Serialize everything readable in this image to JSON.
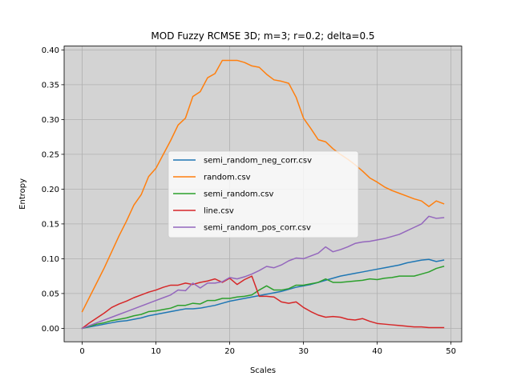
{
  "chart_data": {
    "type": "line",
    "title": "MOD Fuzzy RCMSE 3D; m=3; r=0.2; delta=0.5",
    "xlabel": "Scales",
    "ylabel": "Entropy",
    "xlim": [
      -2.45,
      51.45
    ],
    "ylim": [
      -0.0193,
      0.4055
    ],
    "xticks": [
      0,
      10,
      20,
      30,
      40,
      50
    ],
    "yticks": [
      0.0,
      0.05,
      0.1,
      0.15,
      0.2,
      0.25,
      0.3,
      0.35,
      0.4
    ],
    "ytick_labels": [
      "0.00",
      "0.05",
      "0.10",
      "0.15",
      "0.20",
      "0.25",
      "0.30",
      "0.35",
      "0.40"
    ],
    "grid": true,
    "background": "#d3d3d3",
    "legend_position": "center",
    "x": [
      0,
      1,
      2,
      3,
      4,
      5,
      6,
      7,
      8,
      9,
      10,
      11,
      12,
      13,
      14,
      15,
      16,
      17,
      18,
      19,
      20,
      21,
      22,
      23,
      24,
      25,
      26,
      27,
      28,
      29,
      30,
      31,
      32,
      33,
      34,
      35,
      36,
      37,
      38,
      39,
      40,
      41,
      42,
      43,
      44,
      45,
      46,
      47,
      48,
      49
    ],
    "series": [
      {
        "name": "semi_random_neg_corr.csv",
        "color": "#1f77b4",
        "values": [
          0.0,
          0.002,
          0.004,
          0.006,
          0.008,
          0.01,
          0.011,
          0.013,
          0.015,
          0.018,
          0.02,
          0.022,
          0.024,
          0.026,
          0.028,
          0.028,
          0.029,
          0.031,
          0.033,
          0.036,
          0.039,
          0.041,
          0.043,
          0.045,
          0.047,
          0.049,
          0.051,
          0.053,
          0.056,
          0.059,
          0.061,
          0.063,
          0.066,
          0.069,
          0.072,
          0.075,
          0.077,
          0.079,
          0.081,
          0.083,
          0.085,
          0.087,
          0.089,
          0.091,
          0.094,
          0.096,
          0.098,
          0.099,
          0.096,
          0.098
        ]
      },
      {
        "name": "random.csv",
        "color": "#ff7f0e",
        "values": [
          0.024,
          0.045,
          0.066,
          0.087,
          0.11,
          0.133,
          0.154,
          0.177,
          0.192,
          0.218,
          0.23,
          0.25,
          0.27,
          0.292,
          0.302,
          0.333,
          0.34,
          0.36,
          0.366,
          0.385,
          0.385,
          0.385,
          0.382,
          0.377,
          0.375,
          0.365,
          0.357,
          0.355,
          0.352,
          0.332,
          0.302,
          0.287,
          0.271,
          0.268,
          0.258,
          0.25,
          0.243,
          0.235,
          0.226,
          0.216,
          0.21,
          0.203,
          0.198,
          0.194,
          0.19,
          0.186,
          0.183,
          0.175,
          0.183,
          0.179
        ]
      },
      {
        "name": "semi_random.csv",
        "color": "#2ca02c",
        "values": [
          0.0,
          0.003,
          0.006,
          0.008,
          0.011,
          0.013,
          0.015,
          0.018,
          0.02,
          0.024,
          0.025,
          0.027,
          0.029,
          0.033,
          0.033,
          0.036,
          0.035,
          0.04,
          0.04,
          0.043,
          0.043,
          0.045,
          0.046,
          0.048,
          0.055,
          0.061,
          0.055,
          0.055,
          0.057,
          0.062,
          0.062,
          0.064,
          0.066,
          0.071,
          0.066,
          0.066,
          0.067,
          0.068,
          0.069,
          0.071,
          0.07,
          0.072,
          0.073,
          0.075,
          0.075,
          0.075,
          0.078,
          0.081,
          0.086,
          0.089
        ]
      },
      {
        "name": "line.csv",
        "color": "#d62728",
        "values": [
          0.0,
          0.008,
          0.015,
          0.022,
          0.03,
          0.035,
          0.039,
          0.044,
          0.048,
          0.052,
          0.055,
          0.059,
          0.062,
          0.062,
          0.065,
          0.063,
          0.066,
          0.068,
          0.071,
          0.066,
          0.072,
          0.063,
          0.07,
          0.075,
          0.046,
          0.046,
          0.045,
          0.038,
          0.036,
          0.038,
          0.03,
          0.024,
          0.019,
          0.016,
          0.017,
          0.016,
          0.013,
          0.012,
          0.014,
          0.01,
          0.007,
          0.006,
          0.005,
          0.004,
          0.003,
          0.002,
          0.002,
          0.001,
          0.001,
          0.001
        ]
      },
      {
        "name": "semi_random_pos_corr.csv",
        "color": "#9467bd",
        "values": [
          0.0,
          0.004,
          0.008,
          0.012,
          0.016,
          0.02,
          0.024,
          0.028,
          0.032,
          0.036,
          0.04,
          0.044,
          0.048,
          0.055,
          0.054,
          0.065,
          0.058,
          0.065,
          0.065,
          0.067,
          0.073,
          0.071,
          0.074,
          0.078,
          0.083,
          0.089,
          0.087,
          0.091,
          0.097,
          0.101,
          0.1,
          0.104,
          0.108,
          0.117,
          0.11,
          0.113,
          0.117,
          0.122,
          0.124,
          0.125,
          0.127,
          0.129,
          0.132,
          0.135,
          0.14,
          0.145,
          0.15,
          0.161,
          0.158,
          0.159
        ]
      }
    ]
  }
}
